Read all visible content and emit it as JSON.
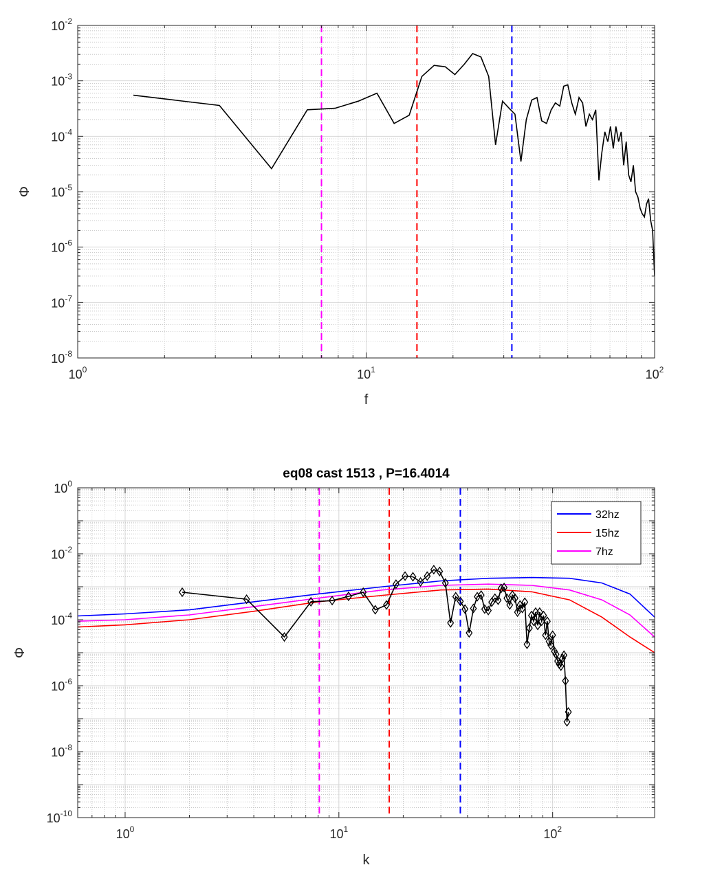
{
  "chart_data": [
    {
      "type": "line",
      "xscale": "log",
      "yscale": "log",
      "xlabel": "f",
      "ylabel": "Φ",
      "xlim": [
        1,
        100
      ],
      "ylim": [
        1e-08,
        0.01
      ],
      "grid": true,
      "x_ticks": [
        {
          "base": "10",
          "exp": "0",
          "value": 1
        },
        {
          "base": "10",
          "exp": "1",
          "value": 10
        },
        {
          "base": "10",
          "exp": "2",
          "value": 100
        }
      ],
      "y_ticks": [
        {
          "base": "10",
          "exp": "-8",
          "value": 1e-08
        },
        {
          "base": "10",
          "exp": "-7",
          "value": 1e-07
        },
        {
          "base": "10",
          "exp": "-6",
          "value": 1e-06
        },
        {
          "base": "10",
          "exp": "-5",
          "value": 1e-05
        },
        {
          "base": "10",
          "exp": "-4",
          "value": 0.0001
        },
        {
          "base": "10",
          "exp": "-3",
          "value": 0.001
        },
        {
          "base": "10",
          "exp": "-2",
          "value": 0.01
        }
      ],
      "vlines": [
        {
          "x": 7,
          "color": "#ff00ff"
        },
        {
          "x": 15,
          "color": "#ff0000"
        },
        {
          "x": 32,
          "color": "#0000ff"
        }
      ],
      "series": [
        {
          "color": "#000000",
          "x": [
            1.56,
            3.1,
            4.7,
            6.25,
            7.8,
            9.4,
            10.9,
            12.5,
            14.1,
            15.6,
            17.2,
            18.8,
            20.3,
            21.9,
            23.4,
            25,
            26.6,
            28.1,
            29.7,
            31.3,
            32.8,
            34.4,
            35.9,
            37.5,
            39.1,
            40.6,
            42.2,
            43.8,
            45.3,
            46.9,
            48.4,
            50,
            51.6,
            53.1,
            54.7,
            56.3,
            57.8,
            59.4,
            60.9,
            62.5,
            64.1,
            65.6,
            67.2,
            68.8,
            70.3,
            71.9,
            73.4,
            75,
            76.6,
            78.1,
            79.7,
            81.3,
            82.8,
            84.4,
            85.9,
            87.5,
            89.1,
            90.6,
            92.2,
            93.8,
            95.3,
            96.9,
            98.4,
            100
          ],
          "y": [
            0.00055,
            0.00036,
            2.6e-05,
            0.0003,
            0.00032,
            0.00043,
            0.0006,
            0.00017,
            0.00024,
            0.0012,
            0.0019,
            0.0018,
            0.0013,
            0.002,
            0.0031,
            0.0027,
            0.0012,
            7e-05,
            0.00043,
            0.00032,
            0.00025,
            3.5e-05,
            0.0002,
            0.00045,
            0.0005,
            0.00019,
            0.00017,
            0.0003,
            0.0004,
            0.00035,
            0.0008,
            0.00085,
            0.0004,
            0.00025,
            0.0005,
            0.0004,
            0.00015,
            0.00025,
            0.0002,
            0.0003,
            1.6e-05,
            5e-05,
            0.00012,
            8e-05,
            0.00015,
            6e-05,
            0.00015,
            8e-05,
            0.00012,
            3e-05,
            8e-05,
            2e-05,
            1.5e-05,
            3e-05,
            1e-05,
            8e-06,
            5e-06,
            4e-06,
            3.5e-06,
            6e-06,
            7.5e-06,
            3e-06,
            2e-06,
            3e-07
          ]
        }
      ]
    },
    {
      "type": "line",
      "title": "eq08 cast 1513 , P=16.4014",
      "xscale": "log",
      "yscale": "log",
      "xlabel": "k",
      "ylabel": "Φ",
      "xlim": [
        0.6,
        300
      ],
      "ylim": [
        1e-10,
        1
      ],
      "grid": true,
      "legend_position": "top-right",
      "x_ticks": [
        {
          "base": "10",
          "exp": "0",
          "value": 1
        },
        {
          "base": "10",
          "exp": "1",
          "value": 10
        },
        {
          "base": "10",
          "exp": "2",
          "value": 100
        }
      ],
      "y_ticks": [
        {
          "base": "10",
          "exp": "-10",
          "value": 1e-10
        },
        {
          "base": "10",
          "exp": "-8",
          "value": 1e-08
        },
        {
          "base": "10",
          "exp": "-6",
          "value": 1e-06
        },
        {
          "base": "10",
          "exp": "-4",
          "value": 0.0001
        },
        {
          "base": "10",
          "exp": "-2",
          "value": 0.01
        },
        {
          "base": "10",
          "exp": "0",
          "value": 1
        }
      ],
      "vlines": [
        {
          "x": 8.1,
          "color": "#ff00ff"
        },
        {
          "x": 17.2,
          "color": "#ff0000"
        },
        {
          "x": 37,
          "color": "#0000ff"
        }
      ],
      "series": [
        {
          "name": "32hz",
          "color": "#0000ff",
          "x": [
            0.6,
            1,
            2,
            4,
            8,
            16,
            30,
            50,
            80,
            120,
            170,
            230,
            300
          ],
          "y": [
            0.00013,
            0.00015,
            0.0002,
            0.00035,
            0.0006,
            0.001,
            0.0015,
            0.0018,
            0.0019,
            0.0018,
            0.0013,
            0.0006,
            0.00012
          ]
        },
        {
          "name": "15hz",
          "color": "#ff0000",
          "x": [
            0.6,
            1,
            2,
            4,
            8,
            16,
            30,
            50,
            80,
            120,
            170,
            230,
            300
          ],
          "y": [
            6e-05,
            7e-05,
            0.0001,
            0.00018,
            0.00035,
            0.00055,
            0.0008,
            0.00085,
            0.0007,
            0.0004,
            0.00012,
            3e-05,
            1e-05
          ]
        },
        {
          "name": "7hz",
          "color": "#ff00ff",
          "x": [
            0.6,
            1,
            2,
            4,
            8,
            16,
            30,
            50,
            80,
            120,
            170,
            230,
            300
          ],
          "y": [
            9e-05,
            0.0001,
            0.00014,
            0.00025,
            0.00045,
            0.0008,
            0.0011,
            0.0012,
            0.0011,
            0.0008,
            0.0004,
            0.00014,
            3e-05
          ]
        },
        {
          "color": "#000000",
          "marker": "diamond",
          "x": [
            1.85,
            3.7,
            5.56,
            7.4,
            9.3,
            11.1,
            13,
            14.8,
            16.7,
            18.5,
            20.4,
            22.2,
            24.1,
            25.9,
            27.8,
            29.6,
            31.5,
            33.3,
            35.2,
            37,
            38.9,
            40.7,
            42.6,
            44.4,
            46.3,
            48.1,
            50,
            51.9,
            53.7,
            55.6,
            57.4,
            59.3,
            61.1,
            63,
            64.8,
            66.7,
            68.5,
            70.4,
            72.2,
            74.1,
            75.9,
            77.8,
            79.6,
            81.5,
            83.3,
            85.2,
            87,
            88.9,
            90.7,
            92.6,
            94.4,
            96.3,
            98.1,
            100,
            101.9,
            103.7,
            105.6,
            107.4,
            109.3,
            111.1,
            113,
            114.8,
            116.7,
            118.5
          ],
          "y": [
            0.00068,
            0.00042,
            3e-05,
            0.00035,
            0.00038,
            0.00051,
            0.00068,
            0.0002,
            0.00028,
            0.0012,
            0.0021,
            0.002,
            0.0014,
            0.0021,
            0.0033,
            0.0029,
            0.0013,
            8e-05,
            0.0005,
            0.00036,
            0.00021,
            4e-05,
            0.00022,
            0.0005,
            0.00056,
            0.00021,
            0.00019,
            0.00034,
            0.00045,
            0.00039,
            0.00089,
            0.00095,
            0.00045,
            0.00028,
            0.00056,
            0.00045,
            0.00017,
            0.00028,
            0.00022,
            0.00034,
            1.8e-05,
            5.6e-05,
            0.000134,
            9e-05,
            0.00017,
            6.7e-05,
            0.00017,
            9e-05,
            0.000134,
            3.4e-05,
            9e-05,
            2.2e-05,
            1.7e-05,
            3.4e-05,
            1.1e-05,
            9e-06,
            5.6e-06,
            4.5e-06,
            3.9e-06,
            6.7e-06,
            8.4e-06,
            1.4e-06,
            8e-08,
            1.6e-07
          ]
        }
      ]
    }
  ]
}
